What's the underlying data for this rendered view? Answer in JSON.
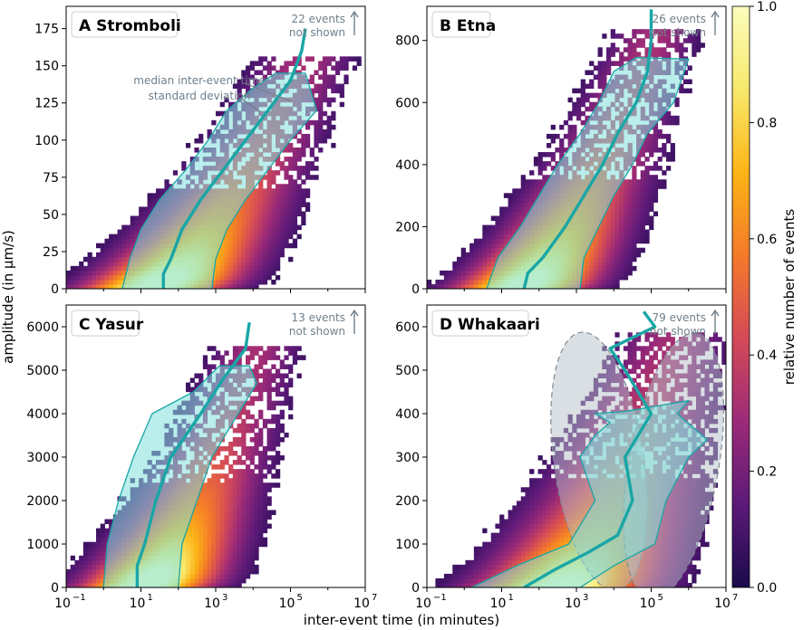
{
  "figure": {
    "xlabel": "inter-event time (in minutes)",
    "ylabel": "amplitude (in µm/s)",
    "colorbar": {
      "label": "relative number of events",
      "range": [
        0,
        1
      ],
      "ticks": [
        "0.0",
        "0.2",
        "0.4",
        "0.6",
        "0.8",
        "1.0"
      ],
      "colors": [
        "#1a0a4b",
        "#5c1a78",
        "#9b2a78",
        "#d44a57",
        "#f47a2a",
        "#fcb416",
        "#f7e96b",
        "#fcfdbd"
      ]
    },
    "legend_median": "median inter-event time",
    "legend_std": "standard deviation",
    "colors": {
      "median": "#19a6a6",
      "band": "#7fe0dc",
      "ellipse": "#b4c0c8",
      "note": "#6f7f8a"
    }
  },
  "chart_data": [
    {
      "type": "heatmap",
      "letter": "A",
      "name": "Stromboli",
      "note": [
        "22 events",
        "not shown"
      ],
      "xscale": "log",
      "xlim_exp": [
        -1,
        7
      ],
      "xticks": [
        "10",
        "10",
        "10",
        "10",
        "10"
      ],
      "xtick_exps": [
        "−1",
        "1",
        "3",
        "5",
        "7"
      ],
      "ylim": [
        0,
        190
      ],
      "yticks": [
        "0",
        "25",
        "50",
        "75",
        "100",
        "125",
        "150",
        "175"
      ],
      "ytick_values": [
        0,
        25,
        50,
        75,
        100,
        125,
        150,
        175
      ],
      "density": {
        "centerStart": 1.2,
        "centerEnd": 5.3,
        "ymax": 150,
        "spread": 1.1,
        "peakY": 8
      },
      "median": [
        [
          1.6,
          0
        ],
        [
          1.6,
          10
        ],
        [
          1.8,
          20
        ],
        [
          2.1,
          40
        ],
        [
          2.6,
          60
        ],
        [
          3.2,
          80
        ],
        [
          3.8,
          100
        ],
        [
          4.4,
          120
        ],
        [
          5.0,
          140
        ],
        [
          5.3,
          160
        ],
        [
          5.4,
          175
        ]
      ],
      "std_upper": [
        [
          2.9,
          0
        ],
        [
          3.0,
          20
        ],
        [
          3.3,
          40
        ],
        [
          3.8,
          60
        ],
        [
          4.4,
          80
        ],
        [
          5.0,
          100
        ],
        [
          5.7,
          120
        ],
        [
          5.4,
          145
        ]
      ],
      "std_lower": [
        [
          0.5,
          0
        ],
        [
          0.7,
          20
        ],
        [
          1.0,
          40
        ],
        [
          1.5,
          60
        ],
        [
          2.2,
          80
        ],
        [
          2.8,
          100
        ],
        [
          3.3,
          120
        ],
        [
          4.0,
          135
        ],
        [
          4.6,
          145
        ]
      ]
    },
    {
      "type": "heatmap",
      "letter": "B",
      "name": "Etna",
      "note": [
        "26 events",
        "not shown"
      ],
      "xscale": "log",
      "xlim_exp": [
        -1,
        7
      ],
      "xticks": [
        "10",
        "10",
        "10",
        "10",
        "10"
      ],
      "xtick_exps": [
        "−1",
        "1",
        "3",
        "5",
        "7"
      ],
      "ylim": [
        0,
        910
      ],
      "yticks": [
        "0",
        "200",
        "400",
        "600",
        "800"
      ],
      "ytick_values": [
        0,
        200,
        400,
        600,
        800
      ],
      "density": {
        "centerStart": 1.4,
        "centerEnd": 5.0,
        "ymax": 790,
        "spread": 1.0,
        "peakY": 30
      },
      "median": [
        [
          1.6,
          0
        ],
        [
          1.7,
          50
        ],
        [
          2.1,
          100
        ],
        [
          2.7,
          200
        ],
        [
          3.2,
          300
        ],
        [
          3.7,
          400
        ],
        [
          4.1,
          500
        ],
        [
          4.6,
          600
        ],
        [
          4.9,
          700
        ],
        [
          5.0,
          800
        ],
        [
          5.0,
          900
        ]
      ],
      "std_upper": [
        [
          3.1,
          0
        ],
        [
          3.2,
          100
        ],
        [
          3.6,
          200
        ],
        [
          4.0,
          300
        ],
        [
          4.5,
          400
        ],
        [
          4.9,
          500
        ],
        [
          5.6,
          600
        ],
        [
          6.0,
          740
        ]
      ],
      "std_lower": [
        [
          0.6,
          0
        ],
        [
          0.9,
          100
        ],
        [
          1.5,
          200
        ],
        [
          2.0,
          300
        ],
        [
          2.5,
          400
        ],
        [
          3.1,
          500
        ],
        [
          3.6,
          600
        ],
        [
          4.0,
          700
        ],
        [
          4.6,
          745
        ]
      ]
    },
    {
      "type": "heatmap",
      "letter": "C",
      "name": "Yasur",
      "note": [
        "13 events",
        "not shown"
      ],
      "xscale": "log",
      "xlim_exp": [
        -1,
        7
      ],
      "xticks": [
        "10",
        "10",
        "10",
        "10",
        "10"
      ],
      "xtick_exps": [
        "−1",
        "1",
        "3",
        "5",
        "7"
      ],
      "ylim": [
        0,
        6500
      ],
      "yticks": [
        "0",
        "1000",
        "2000",
        "3000",
        "4000",
        "5000",
        "6000"
      ],
      "ytick_values": [
        0,
        1000,
        2000,
        3000,
        4000,
        5000,
        6000
      ],
      "density": {
        "centerStart": 1.0,
        "centerEnd": 4.0,
        "ymax": 5300,
        "spread": 1.0,
        "peakY": 300
      },
      "median": [
        [
          0.9,
          0
        ],
        [
          0.9,
          500
        ],
        [
          1.1,
          1000
        ],
        [
          1.4,
          2000
        ],
        [
          1.8,
          3000
        ],
        [
          2.6,
          4000
        ],
        [
          3.2,
          4800
        ],
        [
          3.8,
          5500
        ],
        [
          3.9,
          6100
        ]
      ],
      "std_upper": [
        [
          2.0,
          0
        ],
        [
          2.1,
          1000
        ],
        [
          2.5,
          2000
        ],
        [
          2.9,
          3000
        ],
        [
          3.6,
          4000
        ],
        [
          4.1,
          4700
        ],
        [
          3.9,
          5100
        ]
      ],
      "std_lower": [
        [
          0.0,
          0
        ],
        [
          0.1,
          1000
        ],
        [
          0.4,
          2000
        ],
        [
          0.8,
          3000
        ],
        [
          1.3,
          4000
        ],
        [
          2.4,
          4500
        ],
        [
          3.1,
          5100
        ]
      ]
    },
    {
      "type": "heatmap",
      "letter": "D",
      "name": "Whakaari",
      "note": [
        "79 events",
        "not shown"
      ],
      "xscale": "log",
      "xlim_exp": [
        -1,
        7
      ],
      "xticks": [
        "10",
        "10",
        "10",
        "10",
        "10"
      ],
      "xtick_exps": [
        "−1",
        "1",
        "3",
        "5",
        "7"
      ],
      "ylim": [
        0,
        650
      ],
      "yticks": [
        "0",
        "100",
        "200",
        "300",
        "400",
        "500",
        "600"
      ],
      "ytick_values": [
        0,
        100,
        200,
        300,
        400,
        500,
        600
      ],
      "density": {
        "centerStart": 2.5,
        "centerEnd": 5.5,
        "ymax": 560,
        "spread": 1.3,
        "peakY": 10
      },
      "median": [
        [
          1.6,
          0
        ],
        [
          2.4,
          40
        ],
        [
          3.3,
          80
        ],
        [
          4.1,
          120
        ],
        [
          4.5,
          200
        ],
        [
          4.3,
          300
        ],
        [
          5.0,
          400
        ],
        [
          4.3,
          500
        ],
        [
          3.9,
          550
        ],
        [
          5.1,
          600
        ],
        [
          4.8,
          635
        ]
      ],
      "std_upper": [
        [
          3.1,
          0
        ],
        [
          4.0,
          50
        ],
        [
          5.1,
          100
        ],
        [
          5.4,
          200
        ],
        [
          6.0,
          300
        ],
        [
          6.5,
          340
        ],
        [
          5.7,
          400
        ],
        [
          6.0,
          430
        ]
      ],
      "std_lower": [
        [
          0.2,
          0
        ],
        [
          1.4,
          50
        ],
        [
          2.8,
          100
        ],
        [
          3.5,
          200
        ],
        [
          3.1,
          300
        ],
        [
          3.5,
          350
        ],
        [
          3.9,
          380
        ],
        [
          3.5,
          400
        ],
        [
          4.3,
          405
        ]
      ],
      "ellipses": [
        {
          "cx": 3.6,
          "cy": 290,
          "rx": 1.2,
          "ry": 300,
          "rot": -8
        },
        {
          "cx": 5.6,
          "cy": 280,
          "rx": 1.2,
          "ry": 310,
          "rot": 10
        }
      ]
    }
  ]
}
